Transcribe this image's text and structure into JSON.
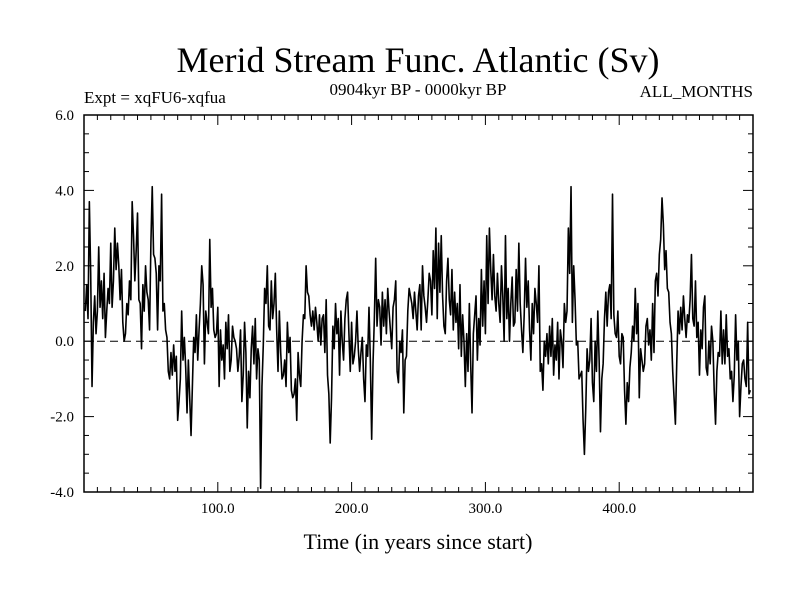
{
  "chart_data": {
    "type": "line",
    "title": "Merid Stream Func. Atlantic (Sv)",
    "subtitle_left": "Expt = xqFU6-xqfua",
    "subtitle_center": "0904kyr BP - 0000kyr BP",
    "subtitle_right": "ALL_MONTHS",
    "xlabel": "Time (in years since start)",
    "ylabel": "",
    "xlim": [
      0,
      500
    ],
    "ylim": [
      -4.0,
      6.0
    ],
    "x_ticks": [
      100,
      200,
      300,
      400
    ],
    "x_tick_labels": [
      "100.0",
      "200.0",
      "300.0",
      "400.0"
    ],
    "y_ticks": [
      6,
      4,
      2,
      0,
      -2,
      -4
    ],
    "y_tick_labels": [
      "6.0",
      "4.0",
      "2.0",
      "0.0",
      "-2.0",
      "-4.0"
    ],
    "reference_line_y": 0.0,
    "series": [
      {
        "name": "Merid Stream Func. Atlantic",
        "x_start": 1,
        "x_step": 1,
        "values": [
          0.8,
          1.5,
          0.6,
          3.7,
          1.8,
          -1.2,
          0.5,
          1.2,
          0.2,
          0.8,
          2.5,
          0.9,
          1.6,
          0.6,
          1.8,
          0.1,
          0.8,
          1.4,
          1.0,
          2.6,
          0.9,
          1.6,
          3.0,
          1.9,
          2.6,
          2.0,
          1.1,
          1.9,
          0.5,
          0.0,
          0.2,
          1.0,
          0.7,
          1.6,
          1.1,
          3.7,
          2.8,
          1.6,
          2.4,
          3.4,
          1.1,
          1.0,
          -0.2,
          1.5,
          0.8,
          2.0,
          1.3,
          1.1,
          0.3,
          2.6,
          4.1,
          2.3,
          2.2,
          1.8,
          0.3,
          2.0,
          1.6,
          3.9,
          0.8,
          1.0,
          0.3,
          0.1,
          -0.8,
          -1.0,
          -0.3,
          -0.9,
          -0.1,
          -0.8,
          -0.4,
          -2.1,
          -1.6,
          -1.0,
          0.8,
          -0.5,
          0.1,
          -0.7,
          -1.9,
          -0.5,
          -1.5,
          -2.5,
          -1.2,
          0.1,
          -0.3,
          0.7,
          -0.5,
          0.3,
          1.0,
          2.0,
          1.5,
          -0.6,
          0.8,
          0.5,
          0.2,
          2.7,
          0.9,
          1.4,
          0.3,
          0.1,
          0.2,
          0.9,
          -1.2,
          0.3,
          -0.5,
          -0.1,
          -1.0,
          0.5,
          -0.2,
          0.7,
          -0.8,
          -0.5,
          0.4,
          0.1,
          0.0,
          -0.2,
          -0.8,
          -0.4,
          0.3,
          -1.6,
          -0.9,
          0.5,
          -0.3,
          -2.3,
          -0.8,
          -1.5,
          -0.2,
          0.4,
          -0.6,
          0.6,
          -1.0,
          -0.2,
          -0.5,
          -3.9,
          -1.2,
          -0.1,
          1.4,
          1.0,
          2.0,
          0.4,
          0.3,
          1.6,
          0.6,
          1.0,
          1.8,
          0.3,
          -0.8,
          0.8,
          -0.3,
          -1.0,
          -0.9,
          -0.5,
          -1.2,
          0.5,
          -0.3,
          0.1,
          -1.3,
          -1.5,
          -1.4,
          -1.0,
          -2.1,
          -0.3,
          -0.9,
          -1.2,
          0.0,
          0.7,
          0.6,
          2.0,
          1.3,
          1.2,
          0.7,
          0.4,
          0.8,
          0.3,
          0.9,
          0.5,
          0.0,
          0.7,
          -0.1,
          0.6,
          0.7,
          -0.3,
          1.1,
          -0.9,
          -1.4,
          -2.7,
          -1.5,
          0.4,
          -0.2,
          1.0,
          0.2,
          0.6,
          -0.9,
          0.8,
          0.0,
          -0.5,
          0.6,
          1.1,
          1.3,
          0.2,
          -0.8,
          0.5,
          -0.6,
          -0.4,
          0.0,
          0.8,
          -0.2,
          -0.8,
          -0.3,
          0.1,
          -1.0,
          -1.6,
          -0.1,
          -0.4,
          0.9,
          -0.5,
          -2.6,
          -0.6,
          0.6,
          2.2,
          0.4,
          1.1,
          0.9,
          -0.1,
          1.3,
          0.4,
          1.1,
          0.2,
          1.4,
          0.8,
          0.3,
          -0.2,
          0.9,
          1.1,
          1.6,
          -0.8,
          -1.1,
          0.0,
          -0.3,
          0.3,
          -1.9,
          -0.5,
          -0.4,
          0.8,
          1.4,
          1.2,
          1.0,
          0.6,
          1.3,
          0.8,
          0.3,
          1.2,
          1.5,
          0.3,
          2.0,
          1.2,
          0.9,
          0.5,
          1.1,
          1.8,
          1.6,
          0.7,
          2.4,
          1.4,
          3.0,
          0.6,
          2.6,
          1.3,
          2.8,
          1.2,
          0.4,
          0.2,
          1.6,
          2.2,
          1.1,
          0.7,
          1.9,
          0.3,
          1.3,
          0.5,
          1.0,
          -0.2,
          1.5,
          -0.4,
          0.7,
          0.0,
          -1.2,
          0.2,
          -0.8,
          1.0,
          -0.6,
          -1.9,
          0.2,
          0.7,
          1.2,
          -0.5,
          0.6,
          -0.1,
          1.9,
          0.4,
          1.6,
          0.2,
          2.8,
          1.0,
          3.0,
          1.9,
          1.1,
          2.3,
          1.2,
          0.8,
          1.8,
          1.0,
          0.5,
          2.0,
          1.2,
          0.0,
          2.8,
          0.6,
          1.4,
          0.0,
          1.0,
          1.7,
          0.4,
          0.5,
          1.9,
          0.8,
          2.6,
          1.0,
          0.3,
          -0.3,
          0.7,
          2.2,
          0.9,
          1.6,
          0.3,
          -0.5,
          1.0,
          0.2,
          1.4,
          1.0,
          0.5,
          2.0,
          -0.8,
          -0.6,
          -1.3,
          0.0,
          -0.4,
          0.2,
          -0.6,
          0.4,
          -0.4,
          0.6,
          -0.9,
          -0.1,
          -0.5,
          0.5,
          -1.0,
          0.3,
          0.0,
          -0.7,
          1.0,
          0.5,
          0.8,
          3.0,
          1.8,
          4.1,
          0.5,
          2.0,
          1.1,
          -0.1,
          0.0,
          -1.0,
          -0.9,
          -0.8,
          -2.1,
          -3.0,
          -1.8,
          -0.2,
          -0.8,
          -0.5,
          0.6,
          -1.1,
          -1.6,
          0.0,
          -0.8,
          0.8,
          -0.5,
          -2.4,
          -1.0,
          -0.6,
          0.6,
          1.3,
          0.4,
          1.3,
          1.5,
          0.6,
          3.9,
          0.7,
          0.2,
          0.1,
          0.8,
          -0.4,
          -0.6,
          0.2,
          0.1,
          -1.3,
          -2.2,
          -1.1,
          -1.6,
          -0.7,
          -0.3,
          0.4,
          0.0,
          1.4,
          0.2,
          1.0,
          -1.5,
          -0.2,
          -0.5,
          -0.8,
          -0.6,
          0.4,
          0.6,
          -0.1,
          0.3,
          -0.5,
          1.0,
          -0.3,
          1.6,
          1.8,
          1.2,
          2.3,
          2.7,
          3.8,
          3.1,
          1.9,
          2.4,
          1.4,
          1.3,
          0.5,
          0.2,
          -0.8,
          -1.5,
          -2.2,
          -0.6,
          0.8,
          0.2,
          0.9,
          0.3,
          1.2,
          0.6,
          0.1,
          0.7,
          0.5,
          1.1,
          2.3,
          0.6,
          0.4,
          1.6,
          0.1,
          0.5,
          -0.9,
          0.3,
          -0.2,
          0.9,
          1.2,
          -0.7,
          -0.9,
          0.0,
          -0.6,
          0.4,
          0.0,
          -1.3,
          -2.2,
          -0.8,
          -0.3,
          -0.4,
          0.8,
          -0.6,
          0.3,
          -0.6,
          0.7,
          -0.4,
          -0.2,
          -1.0,
          -0.8,
          -1.6,
          -0.9,
          0.7,
          -0.5,
          0.0,
          -2.0,
          -1.2,
          -0.6,
          -0.5,
          -1.0,
          -1.2,
          0.5,
          -1.4,
          -1.3
        ]
      }
    ]
  }
}
